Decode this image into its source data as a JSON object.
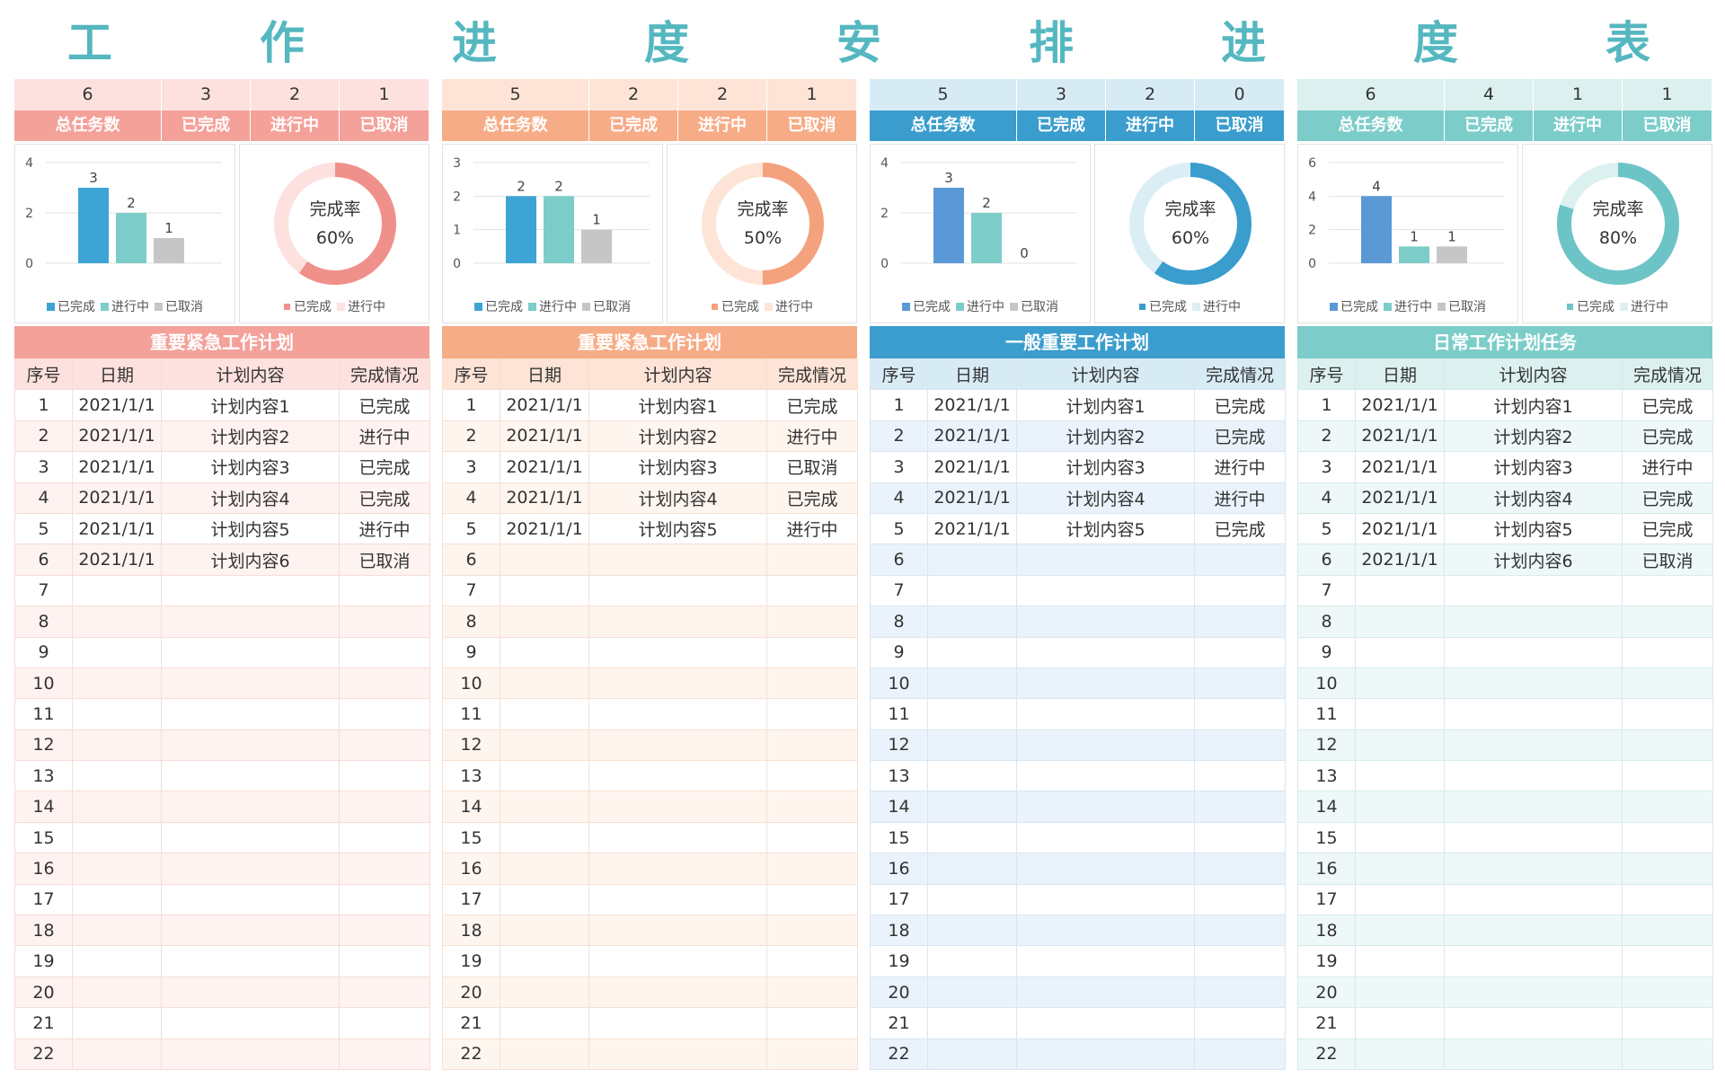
{
  "title_chars": [
    "工",
    "作",
    "进",
    "度",
    "安",
    "排",
    "进",
    "度",
    "表"
  ],
  "legend_labels": {
    "done": "已完成",
    "progress": "进行中",
    "cancel": "已取消"
  },
  "donut_label": "完成率",
  "table_headers": [
    "序号",
    "日期",
    "计划内容",
    "完成情况"
  ],
  "panels": [
    {
      "summary": {
        "values": [
          "6",
          "3",
          "2",
          "1"
        ],
        "labels": [
          "总任务数",
          "已完成",
          "进行中",
          "已取消"
        ]
      },
      "colors": {
        "header": "#f4a19a",
        "value_bg": "#fde1de",
        "thead_bg": "#fde1de",
        "stripe": "#fff3f1",
        "title_bg": "#f4a19a",
        "donut": "#f0908a",
        "donut_light": "#fde1de"
      },
      "chart_data": {
        "type": "bar",
        "categories": [
          "已完成",
          "进行中",
          "已取消"
        ],
        "values": [
          3,
          2,
          1
        ],
        "ylim": [
          0,
          4
        ],
        "yticks": [
          0,
          2,
          4
        ],
        "colors": [
          "#3ea4d6",
          "#7ccdc9",
          "#c6c6c6"
        ]
      },
      "donut_data": {
        "type": "pie",
        "value": 60,
        "label_text": "60%",
        "legend": [
          "已完成",
          "进行中"
        ]
      },
      "table_title": "重要紧急工作计划",
      "rows": [
        [
          "1",
          "2021/1/1",
          "计划内容1",
          "已完成"
        ],
        [
          "2",
          "2021/1/1",
          "计划内容2",
          "进行中"
        ],
        [
          "3",
          "2021/1/1",
          "计划内容3",
          "已完成"
        ],
        [
          "4",
          "2021/1/1",
          "计划内容4",
          "已完成"
        ],
        [
          "5",
          "2021/1/1",
          "计划内容5",
          "进行中"
        ],
        [
          "6",
          "2021/1/1",
          "计划内容6",
          "已取消"
        ],
        [
          "7",
          "",
          "",
          ""
        ],
        [
          "8",
          "",
          "",
          ""
        ],
        [
          "9",
          "",
          "",
          ""
        ],
        [
          "10",
          "",
          "",
          ""
        ],
        [
          "11",
          "",
          "",
          ""
        ],
        [
          "12",
          "",
          "",
          ""
        ],
        [
          "13",
          "",
          "",
          ""
        ],
        [
          "14",
          "",
          "",
          ""
        ],
        [
          "15",
          "",
          "",
          ""
        ],
        [
          "16",
          "",
          "",
          ""
        ],
        [
          "17",
          "",
          "",
          ""
        ],
        [
          "18",
          "",
          "",
          ""
        ],
        [
          "19",
          "",
          "",
          ""
        ],
        [
          "20",
          "",
          "",
          ""
        ],
        [
          "21",
          "",
          "",
          ""
        ],
        [
          "22",
          "",
          "",
          ""
        ]
      ]
    },
    {
      "summary": {
        "values": [
          "5",
          "2",
          "2",
          "1"
        ],
        "labels": [
          "总任务数",
          "已完成",
          "进行中",
          "已取消"
        ]
      },
      "colors": {
        "header": "#f6ac87",
        "value_bg": "#fde4d7",
        "thead_bg": "#fde4d7",
        "stripe": "#fff5ef",
        "title_bg": "#f6ac87",
        "donut": "#f4a17e",
        "donut_light": "#fde4d7"
      },
      "chart_data": {
        "type": "bar",
        "categories": [
          "已完成",
          "进行中",
          "已取消"
        ],
        "values": [
          2,
          2,
          1
        ],
        "ylim": [
          0,
          3
        ],
        "yticks": [
          0,
          1,
          2,
          3
        ],
        "colors": [
          "#3ea4d6",
          "#7ccdc9",
          "#c6c6c6"
        ]
      },
      "donut_data": {
        "type": "pie",
        "value": 50,
        "label_text": "50%",
        "legend": [
          "已完成",
          "进行中"
        ]
      },
      "table_title": "重要紧急工作计划",
      "rows": [
        [
          "1",
          "2021/1/1",
          "计划内容1",
          "已完成"
        ],
        [
          "2",
          "2021/1/1",
          "计划内容2",
          "进行中"
        ],
        [
          "3",
          "2021/1/1",
          "计划内容3",
          "已取消"
        ],
        [
          "4",
          "2021/1/1",
          "计划内容4",
          "已完成"
        ],
        [
          "5",
          "2021/1/1",
          "计划内容5",
          "进行中"
        ],
        [
          "6",
          "",
          "",
          ""
        ],
        [
          "7",
          "",
          "",
          ""
        ],
        [
          "8",
          "",
          "",
          ""
        ],
        [
          "9",
          "",
          "",
          ""
        ],
        [
          "10",
          "",
          "",
          ""
        ],
        [
          "11",
          "",
          "",
          ""
        ],
        [
          "12",
          "",
          "",
          ""
        ],
        [
          "13",
          "",
          "",
          ""
        ],
        [
          "14",
          "",
          "",
          ""
        ],
        [
          "15",
          "",
          "",
          ""
        ],
        [
          "16",
          "",
          "",
          ""
        ],
        [
          "17",
          "",
          "",
          ""
        ],
        [
          "18",
          "",
          "",
          ""
        ],
        [
          "19",
          "",
          "",
          ""
        ],
        [
          "20",
          "",
          "",
          ""
        ],
        [
          "21",
          "",
          "",
          ""
        ],
        [
          "22",
          "",
          "",
          ""
        ]
      ]
    },
    {
      "summary": {
        "values": [
          "5",
          "3",
          "2",
          "0"
        ],
        "labels": [
          "总任务数",
          "已完成",
          "进行中",
          "已取消"
        ]
      },
      "colors": {
        "header": "#3a9dcd",
        "value_bg": "#d7ebf5",
        "thead_bg": "#d7ebf5",
        "stripe": "#eaf3fb",
        "title_bg": "#3a9dcd",
        "donut": "#3a9dcd",
        "donut_light": "#dbeef6"
      },
      "chart_data": {
        "type": "bar",
        "categories": [
          "已完成",
          "进行中",
          "已取消"
        ],
        "values": [
          3,
          2,
          0
        ],
        "ylim": [
          0,
          4
        ],
        "yticks": [
          0,
          2,
          4
        ],
        "colors": [
          "#5b98d6",
          "#7ccdc9",
          "#c6c6c6"
        ]
      },
      "donut_data": {
        "type": "pie",
        "value": 60,
        "label_text": "60%",
        "legend": [
          "已完成",
          "进行中"
        ]
      },
      "table_title": "一般重要工作计划",
      "rows": [
        [
          "1",
          "2021/1/1",
          "计划内容1",
          "已完成"
        ],
        [
          "2",
          "2021/1/1",
          "计划内容2",
          "已完成"
        ],
        [
          "3",
          "2021/1/1",
          "计划内容3",
          "进行中"
        ],
        [
          "4",
          "2021/1/1",
          "计划内容4",
          "进行中"
        ],
        [
          "5",
          "2021/1/1",
          "计划内容5",
          "已完成"
        ],
        [
          "6",
          "",
          "",
          ""
        ],
        [
          "7",
          "",
          "",
          ""
        ],
        [
          "8",
          "",
          "",
          ""
        ],
        [
          "9",
          "",
          "",
          ""
        ],
        [
          "10",
          "",
          "",
          ""
        ],
        [
          "11",
          "",
          "",
          ""
        ],
        [
          "12",
          "",
          "",
          ""
        ],
        [
          "13",
          "",
          "",
          ""
        ],
        [
          "14",
          "",
          "",
          ""
        ],
        [
          "15",
          "",
          "",
          ""
        ],
        [
          "16",
          "",
          "",
          ""
        ],
        [
          "17",
          "",
          "",
          ""
        ],
        [
          "18",
          "",
          "",
          ""
        ],
        [
          "19",
          "",
          "",
          ""
        ],
        [
          "20",
          "",
          "",
          ""
        ],
        [
          "21",
          "",
          "",
          ""
        ],
        [
          "22",
          "",
          "",
          ""
        ]
      ]
    },
    {
      "summary": {
        "values": [
          "6",
          "4",
          "1",
          "1"
        ],
        "labels": [
          "总任务数",
          "已完成",
          "进行中",
          "已取消"
        ]
      },
      "colors": {
        "header": "#7ccdc9",
        "value_bg": "#dcf0f0",
        "thead_bg": "#dcf0f0",
        "stripe": "#eef8f8",
        "title_bg": "#7ccdc9",
        "donut": "#6cc4c7",
        "donut_light": "#dcf0f0"
      },
      "chart_data": {
        "type": "bar",
        "categories": [
          "已完成",
          "进行中",
          "已取消"
        ],
        "values": [
          4,
          1,
          1
        ],
        "ylim": [
          0,
          6
        ],
        "yticks": [
          0,
          2,
          4,
          6
        ],
        "colors": [
          "#5b98d6",
          "#7ccdc9",
          "#c6c6c6"
        ]
      },
      "donut_data": {
        "type": "pie",
        "value": 80,
        "label_text": "80%",
        "legend": [
          "已完成",
          "进行中"
        ]
      },
      "table_title": "日常工作计划任务",
      "rows": [
        [
          "1",
          "2021/1/1",
          "计划内容1",
          "已完成"
        ],
        [
          "2",
          "2021/1/1",
          "计划内容2",
          "已完成"
        ],
        [
          "3",
          "2021/1/1",
          "计划内容3",
          "进行中"
        ],
        [
          "4",
          "2021/1/1",
          "计划内容4",
          "已完成"
        ],
        [
          "5",
          "2021/1/1",
          "计划内容5",
          "已完成"
        ],
        [
          "6",
          "2021/1/1",
          "计划内容6",
          "已取消"
        ],
        [
          "7",
          "",
          "",
          ""
        ],
        [
          "8",
          "",
          "",
          ""
        ],
        [
          "9",
          "",
          "",
          ""
        ],
        [
          "10",
          "",
          "",
          ""
        ],
        [
          "11",
          "",
          "",
          ""
        ],
        [
          "12",
          "",
          "",
          ""
        ],
        [
          "13",
          "",
          "",
          ""
        ],
        [
          "14",
          "",
          "",
          ""
        ],
        [
          "15",
          "",
          "",
          ""
        ],
        [
          "16",
          "",
          "",
          ""
        ],
        [
          "17",
          "",
          "",
          ""
        ],
        [
          "18",
          "",
          "",
          ""
        ],
        [
          "19",
          "",
          "",
          ""
        ],
        [
          "20",
          "",
          "",
          ""
        ],
        [
          "21",
          "",
          "",
          ""
        ],
        [
          "22",
          "",
          "",
          ""
        ]
      ]
    }
  ]
}
